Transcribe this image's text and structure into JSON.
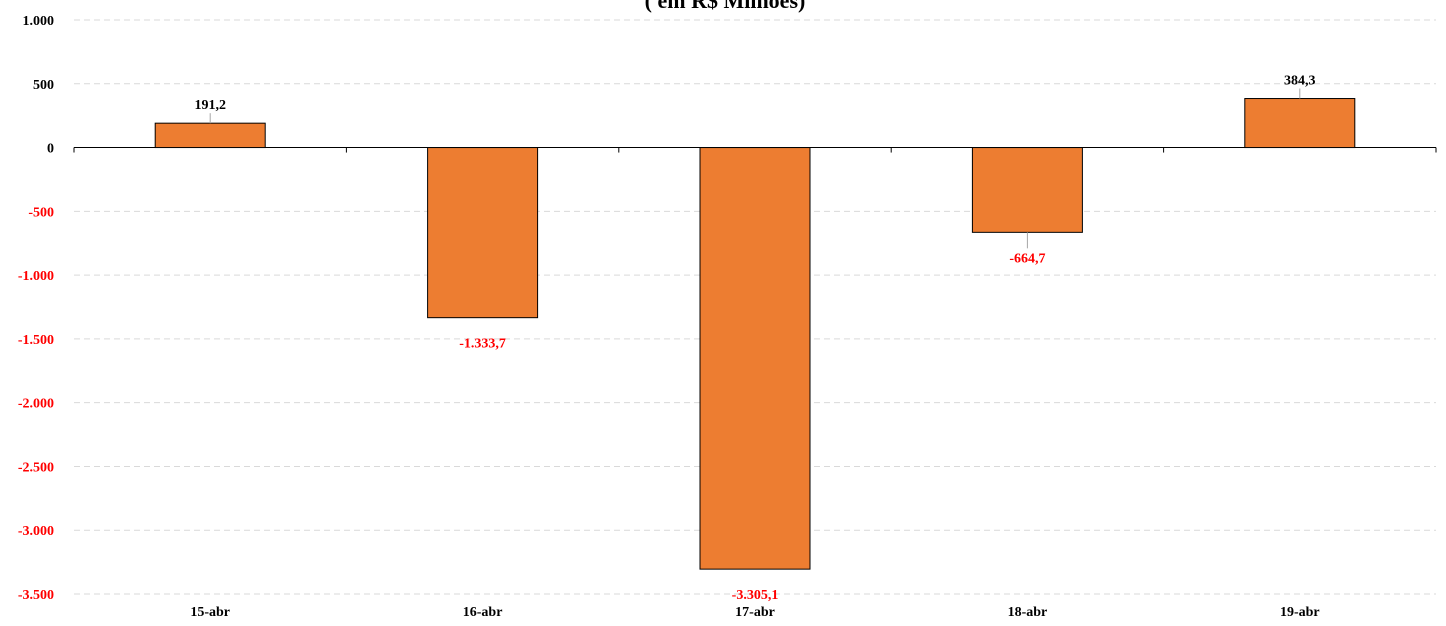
{
  "chart_data": {
    "type": "bar",
    "title": "( em R$ Milhões)",
    "categories": [
      "15-abr",
      "16-abr",
      "17-abr",
      "18-abr",
      "19-abr"
    ],
    "values": [
      191.2,
      -1333.7,
      -3305.1,
      -664.7,
      384.3
    ],
    "value_labels": [
      "191,2",
      "-1.333,7",
      "-3.305,1",
      "-664,7",
      "384,3"
    ],
    "ylim": [
      -3500,
      1000
    ],
    "yticks": [
      1000,
      500,
      0,
      -500,
      -1000,
      -1500,
      -2000,
      -2500,
      -3000,
      -3500
    ],
    "ytick_labels": [
      "1.000",
      "500",
      "0",
      "-500",
      "-1.000",
      "-1.500",
      "-2.000",
      "-2.500",
      "-3.000",
      "-3.500"
    ],
    "grid": true,
    "legend": "none",
    "colors": {
      "bar": "#ED7D31",
      "bar_border": "#000000",
      "positive_label": "#000000",
      "negative_label": "#FF0000",
      "grid": "#D9D9D9"
    }
  }
}
